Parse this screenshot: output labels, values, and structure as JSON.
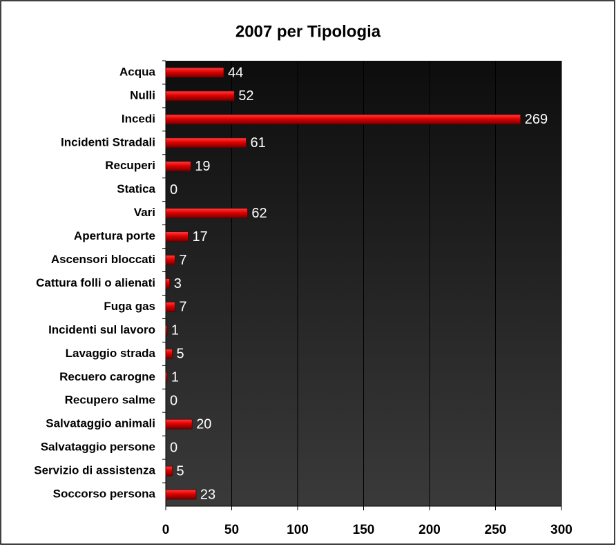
{
  "chart_data": {
    "type": "bar",
    "orientation": "horizontal",
    "title": "2007 per Tipologia",
    "categories": [
      "Acqua",
      "Nulli",
      "Incedi",
      "Incidenti Stradali",
      "Recuperi",
      "Statica",
      "Vari",
      "Apertura porte",
      "Ascensori bloccati",
      "Cattura folli o alienati",
      "Fuga gas",
      "Incidenti sul lavoro",
      "Lavaggio strada",
      "Recuero carogne",
      "Recupero salme",
      "Salvataggio animali",
      "Salvataggio persone",
      "Servizio di assistenza",
      "Soccorso persona"
    ],
    "values": [
      44,
      52,
      269,
      61,
      19,
      0,
      62,
      17,
      7,
      3,
      7,
      1,
      5,
      1,
      0,
      20,
      0,
      5,
      23
    ],
    "color": "#e00000",
    "xlim": [
      0,
      300
    ],
    "xticks": [
      0,
      50,
      100,
      150,
      200,
      250,
      300
    ],
    "grid": true
  }
}
